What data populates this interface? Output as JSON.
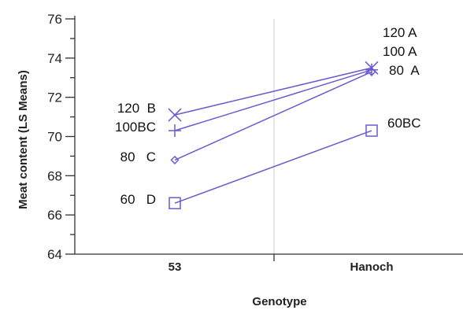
{
  "chart_data": {
    "type": "line",
    "xlabel": "Genotype",
    "ylabel": "Meat content (LS Means)",
    "categories": [
      "53",
      "Hanoch"
    ],
    "ylim": [
      64,
      76
    ],
    "yticks": [
      64,
      66,
      68,
      70,
      72,
      74,
      76
    ],
    "grid": "vertical line between categories",
    "series_color": "#6a5acd",
    "series": [
      {
        "marker": "x",
        "values": [
          71.1,
          73.5
        ],
        "labels": [
          "120  B",
          "120 A"
        ]
      },
      {
        "marker": "plus",
        "values": [
          70.3,
          73.4
        ],
        "labels": [
          "100BC",
          "100 A"
        ]
      },
      {
        "marker": "diamond",
        "values": [
          68.8,
          73.3
        ],
        "labels": [
          "80   C",
          "80  A"
        ]
      },
      {
        "marker": "square",
        "values": [
          66.6,
          70.3
        ],
        "labels": [
          "60   D",
          "60BC"
        ]
      }
    ]
  }
}
